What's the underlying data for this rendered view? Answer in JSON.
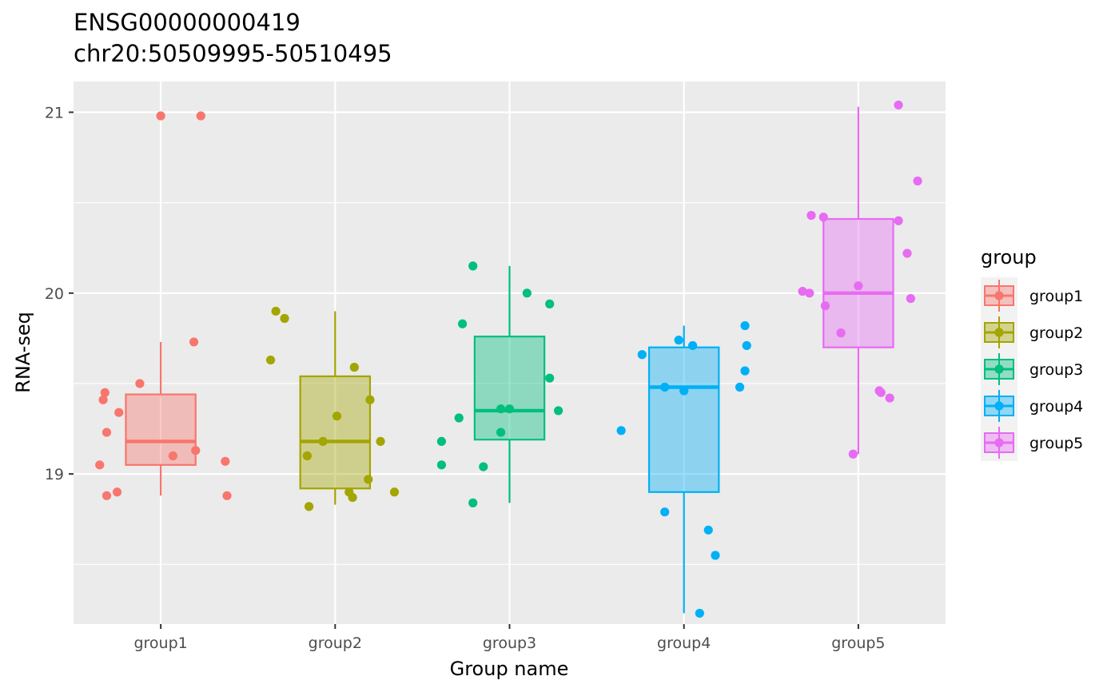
{
  "chart_data": {
    "type": "boxplot",
    "title": "ENSG00000000419",
    "subtitle": "chr20:50509995-50510495",
    "xlabel": "Group name",
    "ylabel": "RNA-seq",
    "ylim": [
      18.17,
      21.17
    ],
    "yticks": [
      19,
      20,
      21
    ],
    "grid": true,
    "legend": {
      "title": "group",
      "position": "right"
    },
    "categories": [
      "group1",
      "group2",
      "group3",
      "group4",
      "group5"
    ],
    "series": [
      {
        "name": "group1",
        "color": "#F8766D",
        "box": {
          "min": 18.88,
          "q1": 19.05,
          "median": 19.18,
          "q3": 19.44,
          "max": 19.73
        },
        "points": [
          [
            -0.35,
            19.05
          ],
          [
            -0.33,
            19.41
          ],
          [
            -0.32,
            19.45
          ],
          [
            -0.31,
            19.23
          ],
          [
            -0.31,
            18.88
          ],
          [
            -0.25,
            18.9
          ],
          [
            -0.24,
            19.34
          ],
          [
            -0.12,
            19.5
          ],
          [
            0.0,
            20.98
          ],
          [
            0.07,
            19.1
          ],
          [
            0.19,
            19.73
          ],
          [
            0.2,
            19.13
          ],
          [
            0.23,
            20.98
          ],
          [
            0.37,
            19.07
          ],
          [
            0.38,
            18.88
          ]
        ]
      },
      {
        "name": "group2",
        "color": "#A3A500",
        "box": {
          "min": 18.83,
          "q1": 18.92,
          "median": 19.18,
          "q3": 19.54,
          "max": 19.9
        },
        "points": [
          [
            -0.37,
            19.63
          ],
          [
            -0.34,
            19.9
          ],
          [
            -0.29,
            19.86
          ],
          [
            -0.16,
            19.1
          ],
          [
            -0.15,
            18.82
          ],
          [
            -0.07,
            19.18
          ],
          [
            0.01,
            19.32
          ],
          [
            0.08,
            18.9
          ],
          [
            0.1,
            18.87
          ],
          [
            0.11,
            19.59
          ],
          [
            0.19,
            18.97
          ],
          [
            0.2,
            19.41
          ],
          [
            0.26,
            19.18
          ],
          [
            0.34,
            18.9
          ]
        ]
      },
      {
        "name": "group3",
        "color": "#00BF7D",
        "box": {
          "min": 18.84,
          "q1": 19.19,
          "median": 19.35,
          "q3": 19.76,
          "max": 20.15
        },
        "points": [
          [
            -0.39,
            19.18
          ],
          [
            -0.39,
            19.05
          ],
          [
            -0.29,
            19.31
          ],
          [
            -0.27,
            19.83
          ],
          [
            -0.21,
            20.15
          ],
          [
            -0.21,
            18.84
          ],
          [
            -0.15,
            19.04
          ],
          [
            -0.05,
            19.23
          ],
          [
            -0.05,
            19.36
          ],
          [
            0.0,
            19.36
          ],
          [
            0.1,
            20.0
          ],
          [
            0.23,
            19.94
          ],
          [
            0.23,
            19.53
          ],
          [
            0.28,
            19.35
          ]
        ]
      },
      {
        "name": "group4",
        "color": "#00B0F6",
        "box": {
          "min": 18.23,
          "q1": 18.9,
          "median": 19.48,
          "q3": 19.7,
          "max": 19.82
        },
        "points": [
          [
            -0.36,
            19.24
          ],
          [
            -0.24,
            19.66
          ],
          [
            -0.11,
            18.79
          ],
          [
            -0.11,
            19.48
          ],
          [
            -0.03,
            19.74
          ],
          [
            0.0,
            19.46
          ],
          [
            0.05,
            19.71
          ],
          [
            0.09,
            18.23
          ],
          [
            0.14,
            18.69
          ],
          [
            0.18,
            18.55
          ],
          [
            0.32,
            19.48
          ],
          [
            0.35,
            19.82
          ],
          [
            0.35,
            19.57
          ],
          [
            0.36,
            19.71
          ]
        ]
      },
      {
        "name": "group5",
        "color": "#E76BF3",
        "box": {
          "min": 19.11,
          "q1": 19.7,
          "median": 20.0,
          "q3": 20.41,
          "max": 21.03
        },
        "points": [
          [
            -0.32,
            20.01
          ],
          [
            -0.28,
            20.0
          ],
          [
            -0.27,
            20.43
          ],
          [
            -0.2,
            20.42
          ],
          [
            -0.19,
            19.93
          ],
          [
            -0.1,
            19.78
          ],
          [
            -0.03,
            19.11
          ],
          [
            0.0,
            20.04
          ],
          [
            0.12,
            19.46
          ],
          [
            0.13,
            19.45
          ],
          [
            0.18,
            19.42
          ],
          [
            0.23,
            21.04
          ],
          [
            0.23,
            20.4
          ],
          [
            0.28,
            20.22
          ],
          [
            0.3,
            19.97
          ],
          [
            0.34,
            20.62
          ]
        ]
      }
    ]
  }
}
